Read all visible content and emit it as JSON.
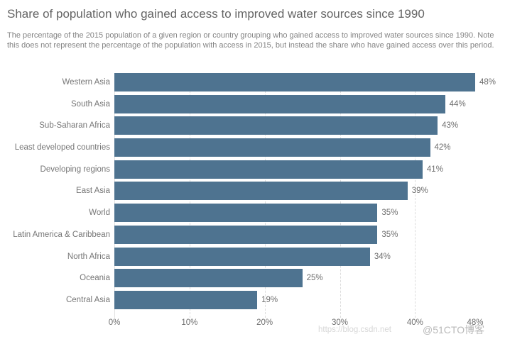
{
  "header": {
    "title": "Share of population who gained access to improved water sources since 1990",
    "subtitle": "The percentage of the 2015 population of a given region or country grouping who gained access to improved water sources since 1990. Note this does not represent the percentage of the population with access in 2015, but instead the share who have gained access over this period."
  },
  "chart_data": {
    "type": "bar",
    "orientation": "horizontal",
    "title": "Share of population who gained access to improved water sources since 1990",
    "categories": [
      "Western Asia",
      "South Asia",
      "Sub-Saharan Africa",
      "Least developed countries",
      "Developing regions",
      "East Asia",
      "World",
      "Latin America & Caribbean",
      "North Africa",
      "Oceania",
      "Central Asia"
    ],
    "values": [
      48,
      44,
      43,
      42,
      41,
      39,
      35,
      35,
      34,
      25,
      19
    ],
    "value_labels": [
      "48%",
      "44%",
      "43%",
      "42%",
      "41%",
      "39%",
      "35%",
      "35%",
      "34%",
      "25%",
      "19%"
    ],
    "xlabel": "",
    "ylabel": "",
    "xlim": [
      0,
      48
    ],
    "x_ticks": [
      0,
      10,
      20,
      30,
      40,
      48
    ],
    "x_tick_labels": [
      "0%",
      "10%",
      "20%",
      "30%",
      "40%",
      "48%"
    ],
    "gridline_ticks": [
      10,
      20,
      30,
      40
    ],
    "grid": "vertical-dashed",
    "legend": "none",
    "bar_color": "#4E7390",
    "label_color": "#767676",
    "grid_color": "#dcdcdc"
  },
  "watermark": {
    "csdn_text": "https://blog.csdn.net",
    "cto_text": "@51CTO博客"
  }
}
